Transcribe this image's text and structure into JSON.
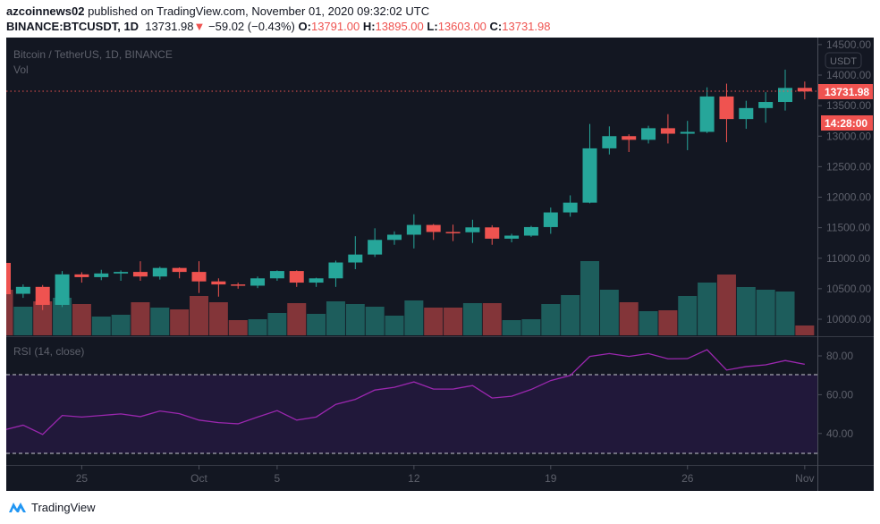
{
  "header": {
    "author": "azcoinnews02",
    "published_text": "published on TradingView.com, November 01, 2020 09:32:02 UTC",
    "symbol": "BINANCE:BTCUSDT, 1D",
    "last": "13731.98",
    "change": "−59.02 (−0.43%)",
    "o_label": "O:",
    "o": "13791.00",
    "h_label": "H:",
    "h": "13895.00",
    "l_label": "L:",
    "l": "13603.00",
    "c_label": "C:",
    "c": "13731.98"
  },
  "chart_title": "Bitcoin / TetherUS, 1D, BINANCE",
  "vol_label": "Vol",
  "currency_badge": "USDT",
  "last_price_label": "13731.98",
  "countdown_label": "14:28:00",
  "rsi_label": "RSI (14, close)",
  "footer": {
    "brand": "TradingView",
    "logo_icon": "tradingview-logo-icon"
  },
  "colors": {
    "background": "#131722",
    "up": "#26a69a",
    "down": "#ef5350",
    "volume_up": "#1d5d5c",
    "volume_down": "#833539",
    "rsi_line": "#9b27af",
    "rsi_band": "#21183a"
  },
  "chart_data": [
    {
      "type": "candlestick",
      "title": "Bitcoin / TetherUS, 1D, BINANCE",
      "ylim": [
        9800,
        14600
      ],
      "y_ticks": [
        "14500.00",
        "14000.00",
        "13500.00",
        "13000.00",
        "12500.00",
        "12000.00",
        "11500.00",
        "11000.00",
        "10500.00",
        "10000.00"
      ],
      "x_ticks": [
        {
          "label": "25",
          "day": 4
        },
        {
          "label": "Oct",
          "day": 10
        },
        {
          "label": "5",
          "day": 14
        },
        {
          "label": "12",
          "day": 21
        },
        {
          "label": "19",
          "day": 28
        },
        {
          "label": "26",
          "day": 35
        },
        {
          "label": "Nov",
          "day": 41
        }
      ],
      "grid": false,
      "candles": [
        {
          "date": "2020-09-21",
          "o": 10923,
          "h": 10950,
          "l": 10400,
          "c": 10410
        },
        {
          "date": "2020-09-22",
          "o": 10417,
          "h": 10570,
          "l": 10350,
          "c": 10530
        },
        {
          "date": "2020-09-23",
          "o": 10530,
          "h": 10560,
          "l": 10150,
          "c": 10235
        },
        {
          "date": "2020-09-24",
          "o": 10235,
          "h": 10790,
          "l": 10200,
          "c": 10735
        },
        {
          "date": "2020-09-25",
          "o": 10735,
          "h": 10770,
          "l": 10600,
          "c": 10690
        },
        {
          "date": "2020-09-26",
          "o": 10690,
          "h": 10810,
          "l": 10640,
          "c": 10750
        },
        {
          "date": "2020-09-27",
          "o": 10750,
          "h": 10800,
          "l": 10630,
          "c": 10775
        },
        {
          "date": "2020-09-28",
          "o": 10775,
          "h": 10950,
          "l": 10630,
          "c": 10700
        },
        {
          "date": "2020-09-29",
          "o": 10700,
          "h": 10860,
          "l": 10650,
          "c": 10840
        },
        {
          "date": "2020-09-30",
          "o": 10840,
          "h": 10850,
          "l": 10670,
          "c": 10775
        },
        {
          "date": "2020-10-01",
          "o": 10775,
          "h": 10950,
          "l": 10430,
          "c": 10620
        },
        {
          "date": "2020-10-02",
          "o": 10620,
          "h": 10670,
          "l": 10370,
          "c": 10570
        },
        {
          "date": "2020-10-03",
          "o": 10570,
          "h": 10600,
          "l": 10500,
          "c": 10550
        },
        {
          "date": "2020-10-04",
          "o": 10550,
          "h": 10700,
          "l": 10510,
          "c": 10670
        },
        {
          "date": "2020-10-05",
          "o": 10670,
          "h": 10800,
          "l": 10630,
          "c": 10790
        },
        {
          "date": "2020-10-06",
          "o": 10790,
          "h": 10800,
          "l": 10530,
          "c": 10600
        },
        {
          "date": "2020-10-07",
          "o": 10600,
          "h": 10680,
          "l": 10530,
          "c": 10670
        },
        {
          "date": "2020-10-08",
          "o": 10670,
          "h": 10960,
          "l": 10530,
          "c": 10930
        },
        {
          "date": "2020-10-09",
          "o": 10930,
          "h": 11360,
          "l": 10820,
          "c": 11060
        },
        {
          "date": "2020-10-10",
          "o": 11060,
          "h": 11490,
          "l": 11020,
          "c": 11300
        },
        {
          "date": "2020-10-11",
          "o": 11300,
          "h": 11440,
          "l": 11220,
          "c": 11385
        },
        {
          "date": "2020-10-12",
          "o": 11385,
          "h": 11720,
          "l": 11160,
          "c": 11545
        },
        {
          "date": "2020-10-13",
          "o": 11545,
          "h": 11560,
          "l": 11300,
          "c": 11430
        },
        {
          "date": "2020-10-14",
          "o": 11430,
          "h": 11550,
          "l": 11280,
          "c": 11425
        },
        {
          "date": "2020-10-15",
          "o": 11425,
          "h": 11630,
          "l": 11250,
          "c": 11505
        },
        {
          "date": "2020-10-16",
          "o": 11505,
          "h": 11540,
          "l": 11220,
          "c": 11320
        },
        {
          "date": "2020-10-17",
          "o": 11320,
          "h": 11400,
          "l": 11260,
          "c": 11370
        },
        {
          "date": "2020-10-18",
          "o": 11370,
          "h": 11530,
          "l": 11350,
          "c": 11510
        },
        {
          "date": "2020-10-19",
          "o": 11510,
          "h": 11830,
          "l": 11400,
          "c": 11750
        },
        {
          "date": "2020-10-20",
          "o": 11750,
          "h": 12030,
          "l": 11680,
          "c": 11910
        },
        {
          "date": "2020-10-21",
          "o": 11910,
          "h": 13200,
          "l": 11900,
          "c": 12800
        },
        {
          "date": "2020-10-22",
          "o": 12800,
          "h": 13160,
          "l": 12700,
          "c": 13000
        },
        {
          "date": "2020-10-23",
          "o": 13000,
          "h": 13030,
          "l": 12740,
          "c": 12940
        },
        {
          "date": "2020-10-24",
          "o": 12940,
          "h": 13170,
          "l": 12880,
          "c": 13130
        },
        {
          "date": "2020-10-25",
          "o": 13130,
          "h": 13360,
          "l": 12880,
          "c": 13040
        },
        {
          "date": "2020-10-26",
          "o": 13040,
          "h": 13250,
          "l": 12770,
          "c": 13070
        },
        {
          "date": "2020-10-27",
          "o": 13070,
          "h": 13800,
          "l": 13050,
          "c": 13650
        },
        {
          "date": "2020-10-28",
          "o": 13650,
          "h": 13860,
          "l": 12900,
          "c": 13280
        },
        {
          "date": "2020-10-29",
          "o": 13280,
          "h": 13580,
          "l": 13120,
          "c": 13460
        },
        {
          "date": "2020-10-30",
          "o": 13460,
          "h": 13720,
          "l": 13220,
          "c": 13560
        },
        {
          "date": "2020-10-31",
          "o": 13560,
          "h": 14090,
          "l": 13420,
          "c": 13790
        },
        {
          "date": "2020-11-01",
          "o": 13791,
          "h": 13895,
          "l": 13603,
          "c": 13731.98
        }
      ],
      "volume_relative": [
        51,
        32,
        38,
        42,
        35,
        21,
        23,
        37,
        31,
        29,
        44,
        37,
        17,
        18,
        25,
        36,
        24,
        38,
        35,
        32,
        22,
        39,
        31,
        31,
        36,
        36,
        17,
        18,
        35,
        45,
        83,
        51,
        37,
        27,
        28,
        44,
        59,
        68,
        54,
        51,
        49,
        11
      ],
      "last_price": 13731.98
    },
    {
      "type": "line",
      "title": "RSI (14, close)",
      "ylim": [
        25,
        88
      ],
      "y_ticks": [
        "80.00",
        "60.00",
        "40.00"
      ],
      "bands": [
        30,
        70
      ],
      "values": [
        42.1,
        44.3,
        39.5,
        49.3,
        48.5,
        49.3,
        50.1,
        48.7,
        51.6,
        50.2,
        46.9,
        45.6,
        45.0,
        48.5,
        51.8,
        46.9,
        48.5,
        55.0,
        57.6,
        62.4,
        63.8,
        66.6,
        62.9,
        62.9,
        64.7,
        58.3,
        59.2,
        62.7,
        67.3,
        69.9,
        79.7,
        81.2,
        79.7,
        81.2,
        78.5,
        78.6,
        83.2,
        72.7,
        74.5,
        75.4,
        77.6,
        75.7
      ]
    }
  ]
}
